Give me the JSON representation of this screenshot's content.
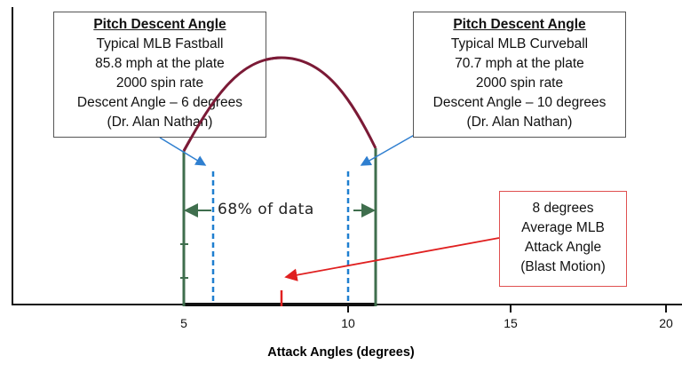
{
  "x_axis": {
    "label": "Attack Angles (degrees)",
    "ticks": [
      "5",
      "10",
      "15",
      "20"
    ]
  },
  "fastball_box": {
    "title": "Pitch Descent Angle",
    "lines": [
      "Typical MLB Fastball",
      "85.8 mph at the plate",
      "2000 spin rate",
      "Descent Angle – 6 degrees",
      "(Dr. Alan Nathan)"
    ]
  },
  "curveball_box": {
    "title": "Pitch Descent Angle",
    "lines": [
      "Typical MLB Curveball",
      "70.7 mph at the plate",
      "2000 spin rate",
      "Descent Angle – 10 degrees",
      "(Dr. Alan Nathan)"
    ]
  },
  "average_box": {
    "lines": [
      "8 degrees",
      "Average MLB",
      "Attack Angle",
      "(Blast Motion)"
    ]
  },
  "range_label": "68% of data",
  "colors": {
    "curve": "#7b1a36",
    "range_lines": "#3f6e4d",
    "descent_lines": "#1f7fd0",
    "average": "#e02020"
  }
}
